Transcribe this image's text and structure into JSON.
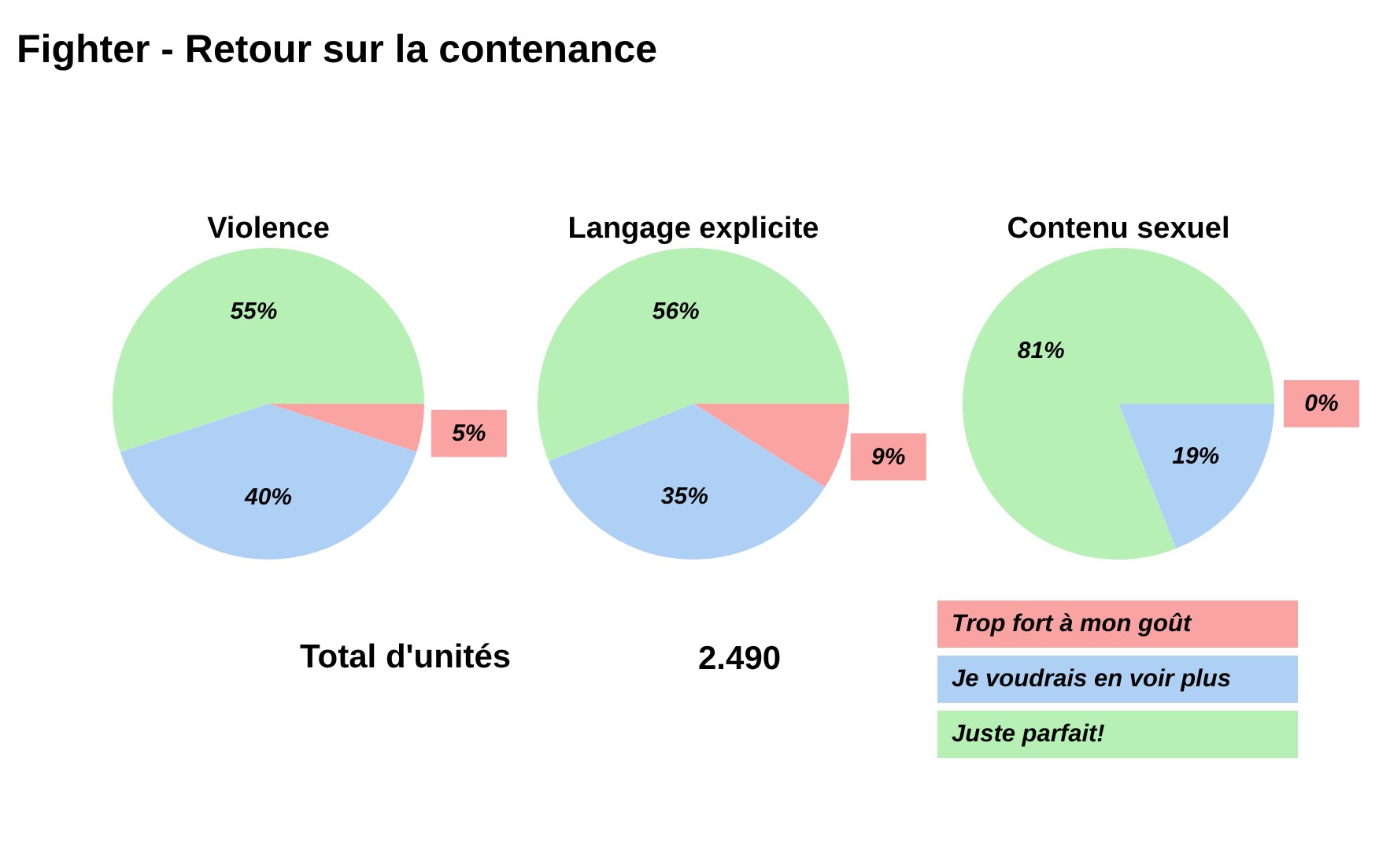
{
  "chart_data": [
    {
      "type": "other",
      "title": "Fighter - Retour sur la contenance"
    },
    {
      "type": "pie",
      "title": "Violence",
      "categories": [
        null,
        null,
        null
      ],
      "values": [
        5,
        40,
        55
      ],
      "colors": [
        "#f9a3a3",
        "#afd0f5",
        "#b6f0b4"
      ],
      "value_labels": [
        "5%",
        "40%",
        "55%"
      ]
    },
    {
      "type": "pie",
      "title": "Langage explicite",
      "categories": [
        null,
        null,
        null
      ],
      "values": [
        9,
        35,
        56
      ],
      "colors": [
        "#f9a3a3",
        "#afd0f5",
        "#b6f0b4"
      ],
      "value_labels": [
        "9%",
        "35%",
        "56%"
      ]
    },
    {
      "type": "pie",
      "title": "Contenu sexuel",
      "categories": [
        "Trop fort à mon goût",
        "Je voudrais en voir plus",
        "Juste parfait!"
      ],
      "values": [
        0,
        19,
        81
      ],
      "colors": [
        "#f9a3a3",
        "#afd0f5",
        "#b6f0b4"
      ],
      "value_labels": [
        "0%",
        "19%",
        "81%"
      ],
      "legend": "bottom"
    },
    {
      "type": "other",
      "annotations": [
        "Total d'unités",
        "2.490"
      ]
    }
  ]
}
